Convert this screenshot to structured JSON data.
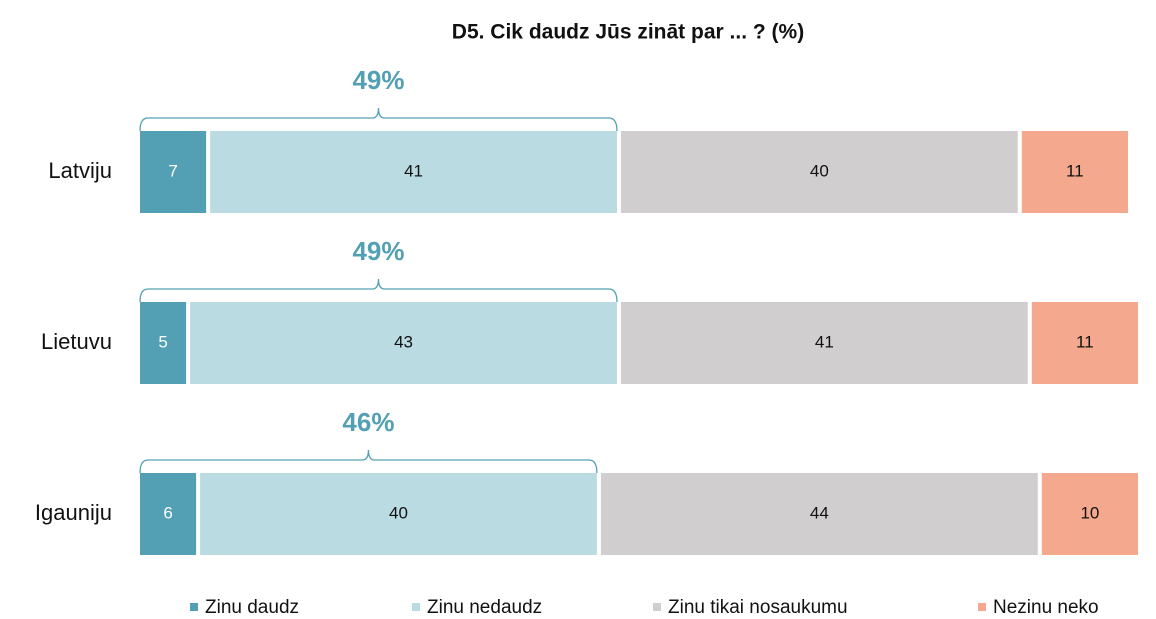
{
  "chart_data": {
    "type": "stacked_barh",
    "title": "D5. Cik daudz Jūs zināt par ... ? (%)",
    "categories": [
      "Latviju",
      "Lietuvu",
      "Igauniju"
    ],
    "series": [
      {
        "name": "Zinu daudz",
        "color": "#53a0b4",
        "values": [
          7,
          5,
          6
        ]
      },
      {
        "name": "Zinu nedaudz",
        "color": "#bbdbe2",
        "values": [
          41,
          43,
          40
        ]
      },
      {
        "name": "Zinu tikai nosaukumu",
        "color": "#d1cecf",
        "values": [
          40,
          41,
          44
        ]
      },
      {
        "name": "Nezinu neko",
        "color": "#f4a88d",
        "values": [
          11,
          11,
          10
        ]
      }
    ],
    "annotations": [
      "49%",
      "49%",
      "46%"
    ],
    "xlim": [
      0,
      100
    ],
    "legend": "bottom"
  }
}
